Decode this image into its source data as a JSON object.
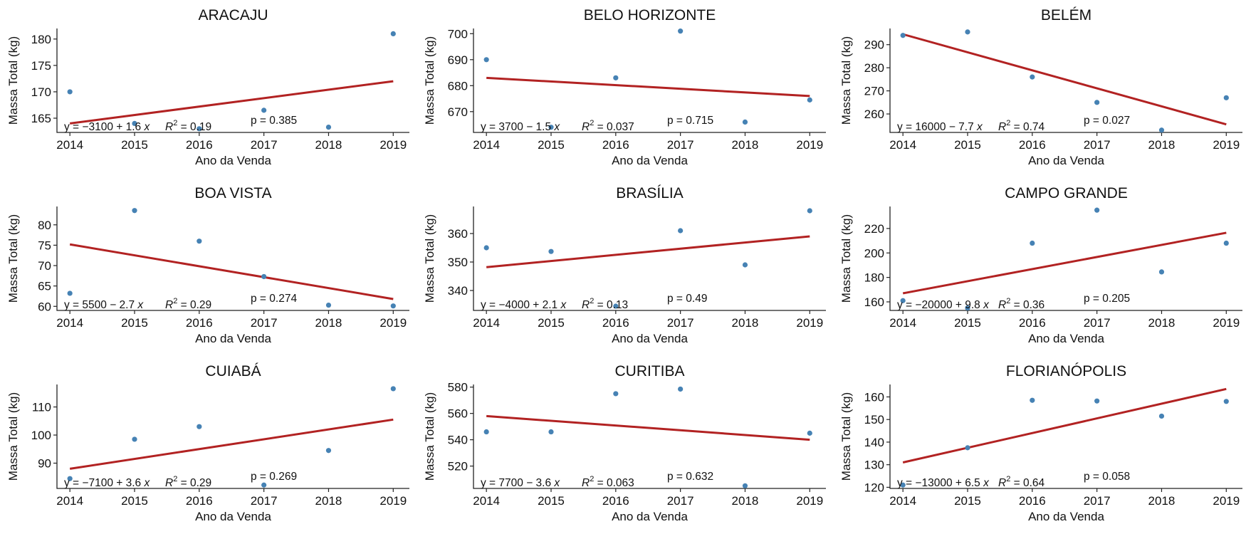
{
  "colors": {
    "points": "#4682b4",
    "fit_line": "#b22222",
    "axis": "#222222",
    "background": "#ffffff"
  },
  "chart_data": [
    {
      "type": "scatter",
      "title": "ARACAJU",
      "xlabel": "Ano da Venda",
      "ylabel": "Massa Total (kg)",
      "x": [
        2014,
        2015,
        2016,
        2017,
        2018,
        2019
      ],
      "y": [
        170,
        164,
        163,
        166.5,
        163.3,
        181
      ],
      "xlim": [
        2013.8,
        2019.25
      ],
      "ylim": [
        162.3,
        182
      ],
      "yticks": [
        165,
        170,
        175,
        180
      ],
      "xticks": [
        2014,
        2015,
        2016,
        2017,
        2018,
        2019
      ],
      "fit": {
        "x": [
          2014,
          2019
        ],
        "y": [
          164,
          172
        ]
      },
      "equation": {
        "prefix": "y = −3100 + 1.6 ",
        "var": "x"
      },
      "r2": {
        "value": " = 0.19"
      },
      "p_value": "p = 0.385",
      "grid": false,
      "legend": "none"
    },
    {
      "type": "scatter",
      "title": "BELO HORIZONTE",
      "xlabel": "Ano da Venda",
      "ylabel": "Massa Total (kg)",
      "x": [
        2014,
        2015,
        2016,
        2017,
        2018,
        2019
      ],
      "y": [
        690,
        664,
        683,
        701,
        666,
        674.5
      ],
      "xlim": [
        2013.8,
        2019.25
      ],
      "ylim": [
        662,
        702
      ],
      "yticks": [
        670,
        680,
        690,
        700
      ],
      "xticks": [
        2014,
        2015,
        2016,
        2017,
        2018,
        2019
      ],
      "fit": {
        "x": [
          2014,
          2019
        ],
        "y": [
          683,
          676
        ]
      },
      "equation": {
        "prefix": "y = 3700 − 1.5 ",
        "var": "x"
      },
      "r2": {
        "value": " = 0.037"
      },
      "p_value": "p = 0.715",
      "grid": false,
      "legend": "none"
    },
    {
      "type": "scatter",
      "title": "BELÉM",
      "xlabel": "Ano da Venda",
      "ylabel": "Massa Total (kg)",
      "x": [
        2014,
        2015,
        2016,
        2017,
        2018,
        2019
      ],
      "y": [
        294,
        295.5,
        276,
        265,
        253,
        267
      ],
      "xlim": [
        2013.8,
        2019.25
      ],
      "ylim": [
        252,
        297
      ],
      "yticks": [
        260,
        270,
        280,
        290
      ],
      "xticks": [
        2014,
        2015,
        2016,
        2017,
        2018,
        2019
      ],
      "fit": {
        "x": [
          2014,
          2019
        ],
        "y": [
          294.5,
          255.5
        ]
      },
      "equation": {
        "prefix": "y = 16000 − 7.7 ",
        "var": "x"
      },
      "r2": {
        "value": " = 0.74"
      },
      "p_value": "p = 0.027",
      "grid": false,
      "legend": "none"
    },
    {
      "type": "scatter",
      "title": "BOA VISTA",
      "xlabel": "Ano da Venda",
      "ylabel": "Massa Total (kg)",
      "x": [
        2014,
        2015,
        2016,
        2017,
        2018,
        2019
      ],
      "y": [
        63.2,
        83.5,
        76,
        67.3,
        60.3,
        60.1
      ],
      "xlim": [
        2013.8,
        2019.25
      ],
      "ylim": [
        59,
        84.5
      ],
      "yticks": [
        60,
        65,
        70,
        75,
        80
      ],
      "xticks": [
        2014,
        2015,
        2016,
        2017,
        2018,
        2019
      ],
      "fit": {
        "x": [
          2014,
          2019
        ],
        "y": [
          75.2,
          61.8
        ]
      },
      "equation": {
        "prefix": "y = 5500 − 2.7 ",
        "var": "x"
      },
      "r2": {
        "value": " = 0.29"
      },
      "p_value": "p = 0.274",
      "grid": false,
      "legend": "none"
    },
    {
      "type": "scatter",
      "title": "BRASÍLIA",
      "xlabel": "Ano da Venda",
      "ylabel": "Massa Total (kg)",
      "x": [
        2014,
        2015,
        2016,
        2017,
        2018,
        2019
      ],
      "y": [
        355,
        353.7,
        334.5,
        361,
        349,
        368
      ],
      "xlim": [
        2013.8,
        2019.25
      ],
      "ylim": [
        333,
        369.5
      ],
      "yticks": [
        340,
        350,
        360
      ],
      "xticks": [
        2014,
        2015,
        2016,
        2017,
        2018,
        2019
      ],
      "fit": {
        "x": [
          2014,
          2019
        ],
        "y": [
          348.2,
          359
        ]
      },
      "equation": {
        "prefix": "y = −4000 + 2.1 ",
        "var": "x"
      },
      "r2": {
        "value": " = 0.13"
      },
      "p_value": "p = 0.49",
      "grid": false,
      "legend": "none"
    },
    {
      "type": "scatter",
      "title": "CAMPO GRANDE",
      "xlabel": "Ano da Venda",
      "ylabel": "Massa Total (kg)",
      "x": [
        2014,
        2015,
        2016,
        2017,
        2018,
        2019
      ],
      "y": [
        161,
        155,
        208,
        235,
        184.5,
        208
      ],
      "xlim": [
        2013.8,
        2019.25
      ],
      "ylim": [
        153,
        238
      ],
      "yticks": [
        160,
        180,
        200,
        220
      ],
      "xticks": [
        2014,
        2015,
        2016,
        2017,
        2018,
        2019
      ],
      "fit": {
        "x": [
          2014,
          2019
        ],
        "y": [
          167,
          216.5
        ]
      },
      "equation": {
        "prefix": "y = −20000 + 9.8 ",
        "var": "x"
      },
      "r2": {
        "value": " = 0.36"
      },
      "p_value": "p = 0.205",
      "grid": false,
      "legend": "none"
    },
    {
      "type": "scatter",
      "title": "CUIABÁ",
      "xlabel": "Ano da Venda",
      "ylabel": "Massa Total (kg)",
      "x": [
        2014,
        2015,
        2016,
        2017,
        2018,
        2019
      ],
      "y": [
        84.5,
        98.5,
        103,
        82.2,
        94.5,
        116.5
      ],
      "xlim": [
        2013.8,
        2019.25
      ],
      "ylim": [
        81,
        118
      ],
      "yticks": [
        90,
        100,
        110
      ],
      "xticks": [
        2014,
        2015,
        2016,
        2017,
        2018,
        2019
      ],
      "fit": {
        "x": [
          2014,
          2019
        ],
        "y": [
          88,
          105.5
        ]
      },
      "equation": {
        "prefix": "y = −7100 + 3.6 ",
        "var": "x"
      },
      "r2": {
        "value": " = 0.29"
      },
      "p_value": "p = 0.269",
      "grid": false,
      "legend": "none"
    },
    {
      "type": "scatter",
      "title": "CURITIBA",
      "xlabel": "Ano da Venda",
      "ylabel": "Massa Total (kg)",
      "x": [
        2014,
        2015,
        2016,
        2017,
        2018,
        2019
      ],
      "y": [
        546,
        546,
        575,
        578.5,
        505,
        545
      ],
      "xlim": [
        2013.8,
        2019.25
      ],
      "ylim": [
        503,
        582
      ],
      "yticks": [
        520,
        540,
        560,
        580
      ],
      "xticks": [
        2014,
        2015,
        2016,
        2017,
        2018,
        2019
      ],
      "fit": {
        "x": [
          2014,
          2019
        ],
        "y": [
          558,
          540
        ]
      },
      "equation": {
        "prefix": "y = 7700 − 3.6 ",
        "var": "x"
      },
      "r2": {
        "value": " = 0.063"
      },
      "p_value": "p = 0.632",
      "grid": false,
      "legend": "none"
    },
    {
      "type": "scatter",
      "title": "FLORIANÓPOLIS",
      "xlabel": "Ano da Venda",
      "ylabel": "Massa Total (kg)",
      "x": [
        2014,
        2015,
        2016,
        2017,
        2018,
        2019
      ],
      "y": [
        121,
        137.5,
        158.5,
        158.2,
        151.5,
        158
      ],
      "xlim": [
        2013.8,
        2019.25
      ],
      "ylim": [
        119.5,
        165.5
      ],
      "yticks": [
        120,
        130,
        140,
        150,
        160
      ],
      "xticks": [
        2014,
        2015,
        2016,
        2017,
        2018,
        2019
      ],
      "fit": {
        "x": [
          2014,
          2019
        ],
        "y": [
          131,
          163.5
        ]
      },
      "equation": {
        "prefix": "y = −13000 + 6.5 ",
        "var": "x"
      },
      "r2": {
        "value": " = 0.64"
      },
      "p_value": "p = 0.058",
      "grid": false,
      "legend": "none"
    }
  ]
}
